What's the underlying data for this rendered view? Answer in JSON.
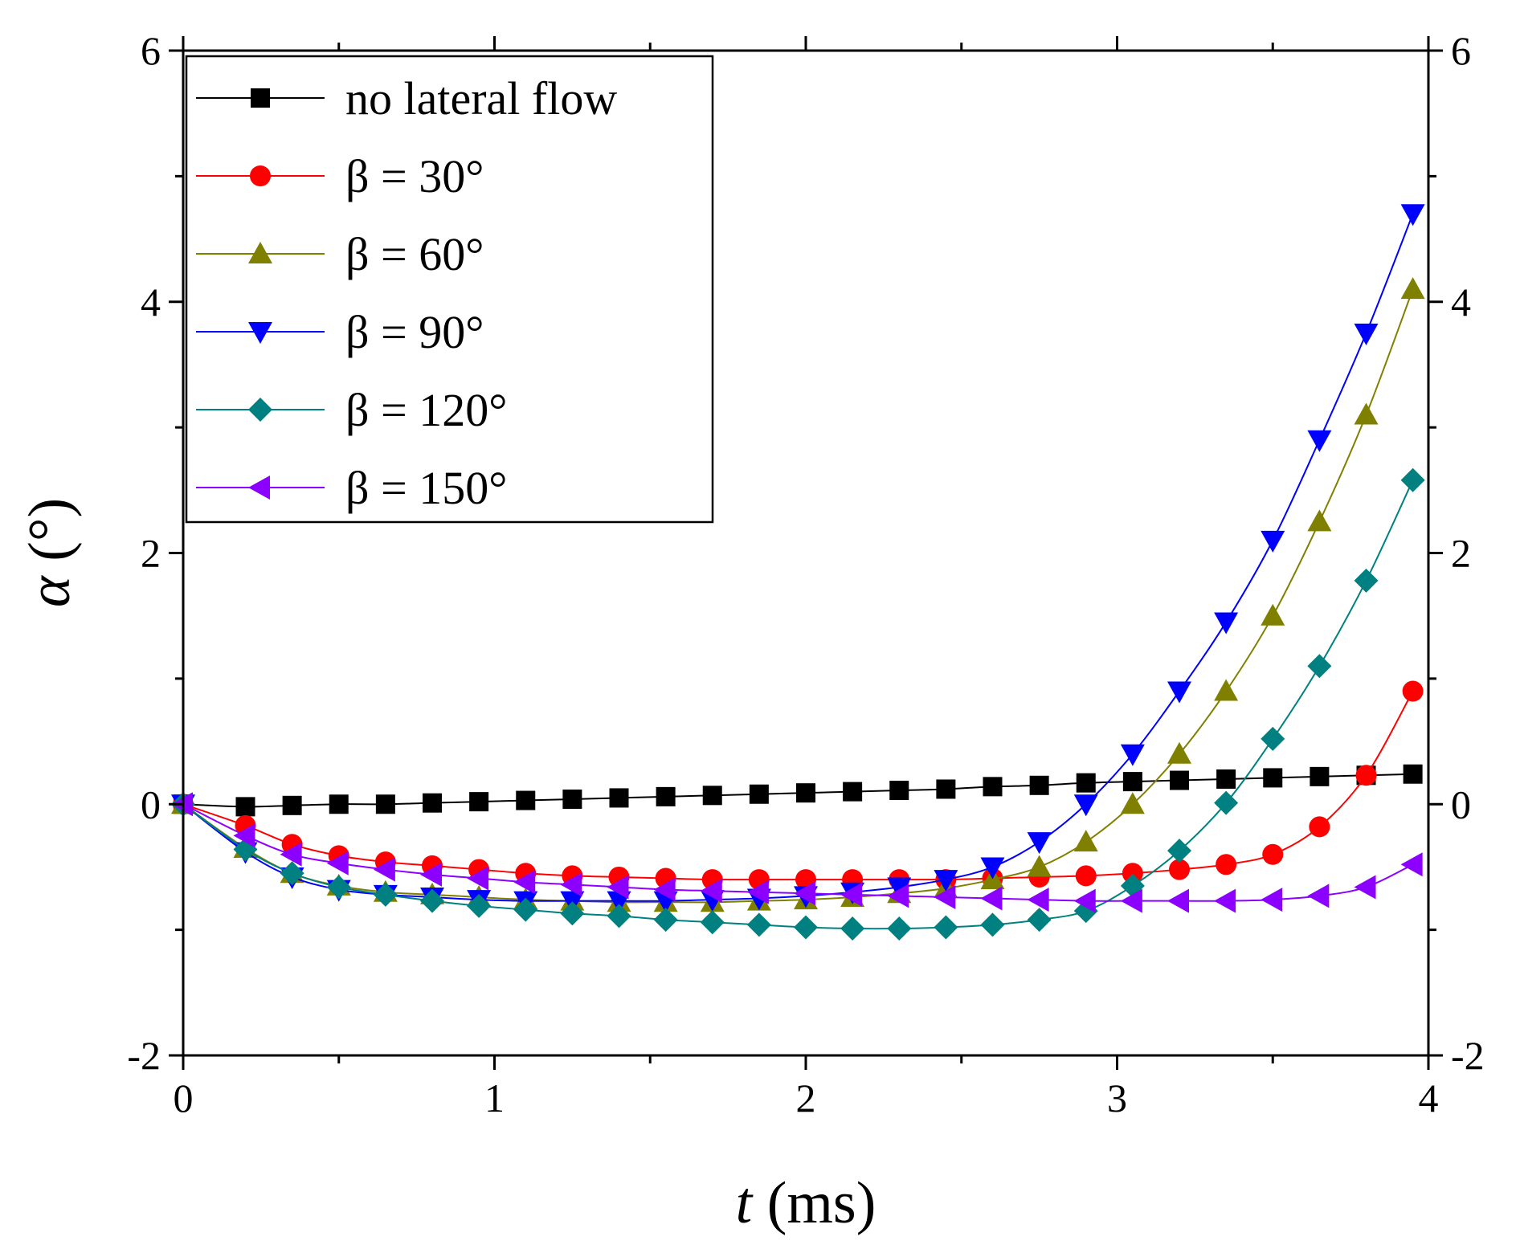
{
  "chart_data": {
    "type": "line",
    "title": "",
    "xlabel": {
      "symbol": "t",
      "unit": " (ms)"
    },
    "ylabel": {
      "symbol": "α",
      "unit": " (°)"
    },
    "xlim": [
      0,
      4
    ],
    "ylim": [
      -2,
      6
    ],
    "xticks": [
      "0",
      "1",
      "2",
      "3",
      "4"
    ],
    "yticks": [
      "-2",
      "0",
      "2",
      "4",
      "6"
    ],
    "legend_position": "top-left",
    "x": [
      0,
      0.2,
      0.35,
      0.5,
      0.65,
      0.8,
      0.95,
      1.1,
      1.25,
      1.4,
      1.55,
      1.7,
      1.85,
      2.0,
      2.15,
      2.3,
      2.45,
      2.6,
      2.75,
      2.9,
      3.05,
      3.2,
      3.35,
      3.5,
      3.65,
      3.8,
      3.95
    ],
    "series": [
      {
        "name": "no lateral flow",
        "color": "#000000",
        "marker": "square",
        "x": [
          0,
          0.2,
          0.35,
          0.5,
          0.65,
          0.8,
          0.95,
          1.1,
          1.25,
          1.4,
          1.55,
          1.7,
          1.85,
          2.0,
          2.15,
          2.3,
          2.45,
          2.6,
          2.75,
          2.9,
          3.05,
          3.2,
          3.35,
          3.5,
          3.65,
          3.8,
          3.95
        ],
        "values": [
          0,
          -0.02,
          -0.01,
          0,
          0,
          0.01,
          0.02,
          0.03,
          0.04,
          0.05,
          0.06,
          0.07,
          0.08,
          0.09,
          0.1,
          0.11,
          0.12,
          0.14,
          0.15,
          0.17,
          0.18,
          0.19,
          0.2,
          0.21,
          0.22,
          0.23,
          0.24
        ]
      },
      {
        "name": "β = 30°",
        "color": "#ff0000",
        "marker": "circle",
        "x": [
          0,
          0.2,
          0.35,
          0.5,
          0.65,
          0.8,
          0.95,
          1.1,
          1.25,
          1.4,
          1.55,
          1.7,
          1.85,
          2.0,
          2.15,
          2.3,
          2.45,
          2.6,
          2.75,
          2.9,
          3.05,
          3.2,
          3.35,
          3.5,
          3.65,
          3.8,
          3.95
        ],
        "values": [
          0,
          -0.17,
          -0.32,
          -0.41,
          -0.46,
          -0.49,
          -0.52,
          -0.55,
          -0.57,
          -0.58,
          -0.59,
          -0.6,
          -0.6,
          -0.6,
          -0.6,
          -0.6,
          -0.6,
          -0.59,
          -0.58,
          -0.57,
          -0.55,
          -0.52,
          -0.48,
          -0.4,
          -0.18,
          0.23,
          0.9
        ]
      },
      {
        "name": "β = 60°",
        "color": "#808000",
        "marker": "triangle-up",
        "x": [
          0,
          0.2,
          0.35,
          0.5,
          0.65,
          0.8,
          0.95,
          1.1,
          1.25,
          1.4,
          1.55,
          1.7,
          1.85,
          2.0,
          2.15,
          2.3,
          2.45,
          2.6,
          2.75,
          2.9,
          3.05,
          3.2,
          3.35,
          3.5,
          3.65,
          3.8,
          3.95
        ],
        "values": [
          0,
          -0.35,
          -0.55,
          -0.65,
          -0.7,
          -0.72,
          -0.74,
          -0.76,
          -0.77,
          -0.78,
          -0.78,
          -0.78,
          -0.77,
          -0.76,
          -0.74,
          -0.71,
          -0.67,
          -0.6,
          -0.5,
          -0.3,
          0.0,
          0.4,
          0.9,
          1.5,
          2.25,
          3.1,
          4.1
        ]
      },
      {
        "name": "β = 90°",
        "color": "#0000ff",
        "marker": "triangle-down",
        "x": [
          0,
          0.2,
          0.35,
          0.5,
          0.65,
          0.8,
          0.95,
          1.1,
          1.25,
          1.4,
          1.55,
          1.7,
          1.85,
          2.0,
          2.15,
          2.3,
          2.45,
          2.6,
          2.75,
          2.9,
          3.05,
          3.2,
          3.35,
          3.5,
          3.65,
          3.8,
          3.95
        ],
        "values": [
          0,
          -0.38,
          -0.58,
          -0.68,
          -0.72,
          -0.74,
          -0.76,
          -0.77,
          -0.77,
          -0.77,
          -0.77,
          -0.76,
          -0.75,
          -0.73,
          -0.7,
          -0.66,
          -0.6,
          -0.5,
          -0.3,
          0.0,
          0.4,
          0.9,
          1.45,
          2.1,
          2.9,
          3.75,
          4.7
        ]
      },
      {
        "name": "β = 120°",
        "color": "#008080",
        "marker": "diamond",
        "x": [
          0,
          0.2,
          0.35,
          0.5,
          0.65,
          0.8,
          0.95,
          1.1,
          1.25,
          1.4,
          1.55,
          1.7,
          1.85,
          2.0,
          2.15,
          2.3,
          2.45,
          2.6,
          2.75,
          2.9,
          3.05,
          3.2,
          3.35,
          3.5,
          3.65,
          3.8,
          3.95
        ],
        "values": [
          0,
          -0.36,
          -0.55,
          -0.66,
          -0.72,
          -0.77,
          -0.81,
          -0.84,
          -0.87,
          -0.89,
          -0.92,
          -0.94,
          -0.96,
          -0.98,
          -0.99,
          -0.99,
          -0.98,
          -0.96,
          -0.92,
          -0.85,
          -0.65,
          -0.37,
          0.01,
          0.52,
          1.1,
          1.78,
          2.58
        ]
      },
      {
        "name": "β = 150°",
        "color": "#8b00ff",
        "marker": "triangle-left",
        "x": [
          0,
          0.2,
          0.35,
          0.5,
          0.65,
          0.8,
          0.95,
          1.1,
          1.25,
          1.4,
          1.55,
          1.7,
          1.85,
          2.0,
          2.15,
          2.3,
          2.45,
          2.6,
          2.75,
          2.9,
          3.05,
          3.2,
          3.35,
          3.5,
          3.65,
          3.8,
          3.95
        ],
        "values": [
          0,
          -0.25,
          -0.4,
          -0.47,
          -0.52,
          -0.56,
          -0.59,
          -0.62,
          -0.64,
          -0.66,
          -0.68,
          -0.69,
          -0.7,
          -0.71,
          -0.72,
          -0.73,
          -0.74,
          -0.75,
          -0.76,
          -0.77,
          -0.77,
          -0.77,
          -0.77,
          -0.76,
          -0.73,
          -0.66,
          -0.48
        ]
      }
    ]
  }
}
